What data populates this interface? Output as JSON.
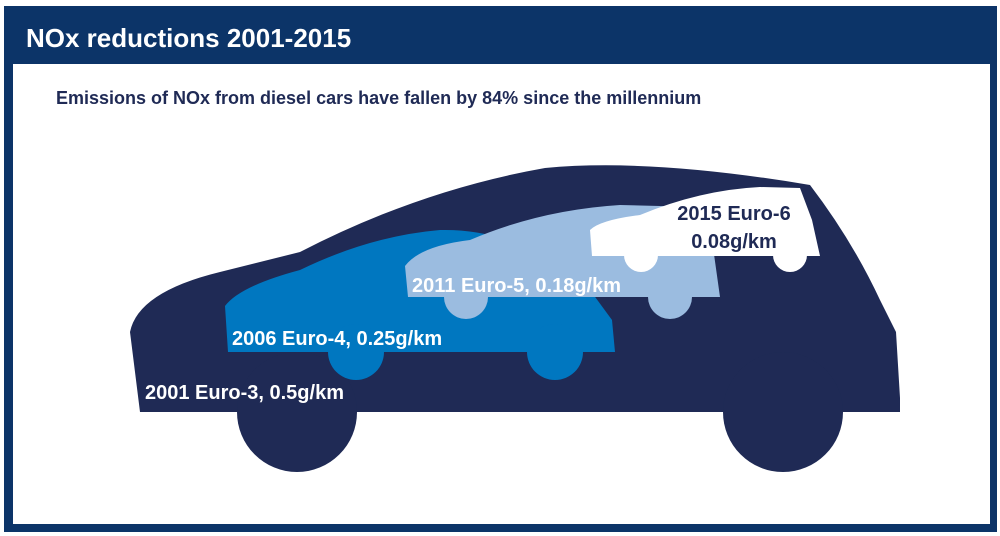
{
  "header": {
    "title": "NOx reductions 2001-2015"
  },
  "subtitle": "Emissions of NOx from diesel cars have fallen by 84% since the millennium",
  "cars": [
    {
      "label": "2001 Euro-3, 0.5g/km"
    },
    {
      "label": "2006 Euro-4, 0.25g/km"
    },
    {
      "label": "2011 Euro-5, 0.18g/km"
    },
    {
      "label_lines": [
        "2015 Euro-6",
        "0.08g/km"
      ]
    }
  ]
}
